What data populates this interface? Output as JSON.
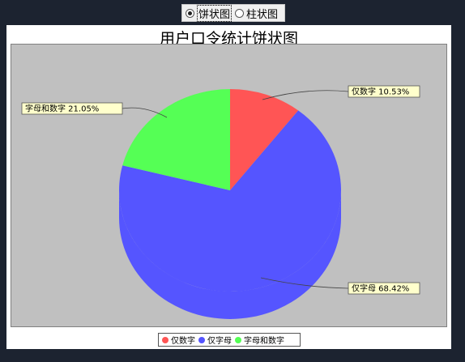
{
  "toggle": {
    "options": [
      {
        "label": "饼状图",
        "selected": true
      },
      {
        "label": "柱状图",
        "selected": false
      }
    ]
  },
  "chart_data": {
    "type": "pie",
    "title": "用户口令统计饼状图",
    "categories": [
      "仅数字",
      "仅字母",
      "字母和数字"
    ],
    "values": [
      10.53,
      68.42,
      21.05
    ],
    "value_unit": "%",
    "labels": [
      "仅数字  10.53%",
      "仅字母  68.42%",
      "字母和数字  21.05%"
    ],
    "colors": [
      "#ff5555",
      "#5555ff",
      "#55ff55"
    ],
    "is_3d": true,
    "legend_position": "bottom",
    "legend": [
      "仅数字",
      "仅字母",
      "字母和数字"
    ]
  },
  "colors": {
    "background": "#1c2330",
    "plot_background": "#c0c0c0",
    "label_background": "#ffffcc"
  }
}
